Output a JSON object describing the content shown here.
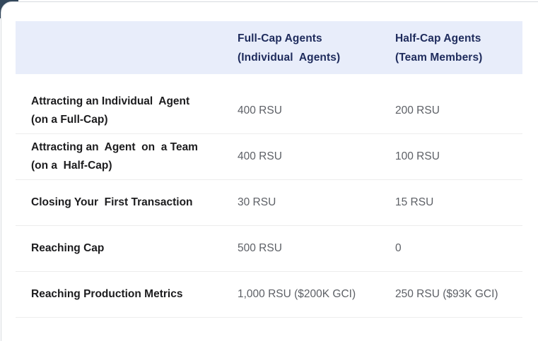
{
  "page": {
    "background_corner_color": "#33475b",
    "card_color": "#ffffff",
    "card_border_color": "#d7dbdf"
  },
  "table": {
    "header": {
      "background_color": "#e8edfa",
      "text_color": "#1e2b5c",
      "columns": [
        {
          "line1": "Full-Cap Agents",
          "line2": "(Individual  Agents)"
        },
        {
          "line1": "Half-Cap Agents",
          "line2": "(Team Members)"
        }
      ]
    },
    "rows": [
      {
        "label_line1": "Attracting an Individual  Agent",
        "label_line2": "(on a Full-Cap)",
        "full_cap_value": "400 RSU",
        "half_cap_value": "200 RSU"
      },
      {
        "label_line1": "Attracting an  Agent  on  a Team",
        "label_line2": "(on a  Half-Cap)",
        "full_cap_value": "400 RSU",
        "half_cap_value": "100 RSU"
      },
      {
        "label_line1": "Closing Your  First Transaction",
        "label_line2": "",
        "full_cap_value": "30 RSU",
        "half_cap_value": "15 RSU"
      },
      {
        "label_line1": "Reaching Cap",
        "label_line2": "",
        "full_cap_value": "500 RSU",
        "half_cap_value": "0"
      },
      {
        "label_line1": "Reaching Production Metrics",
        "label_line2": "",
        "full_cap_value": "1,000 RSU ($200K GCI)",
        "half_cap_value": "250 RSU ($93K GCI)"
      }
    ],
    "label_text_color": "#1c1c1e",
    "value_text_color": "#5d6066",
    "divider_color": "#ededed"
  }
}
